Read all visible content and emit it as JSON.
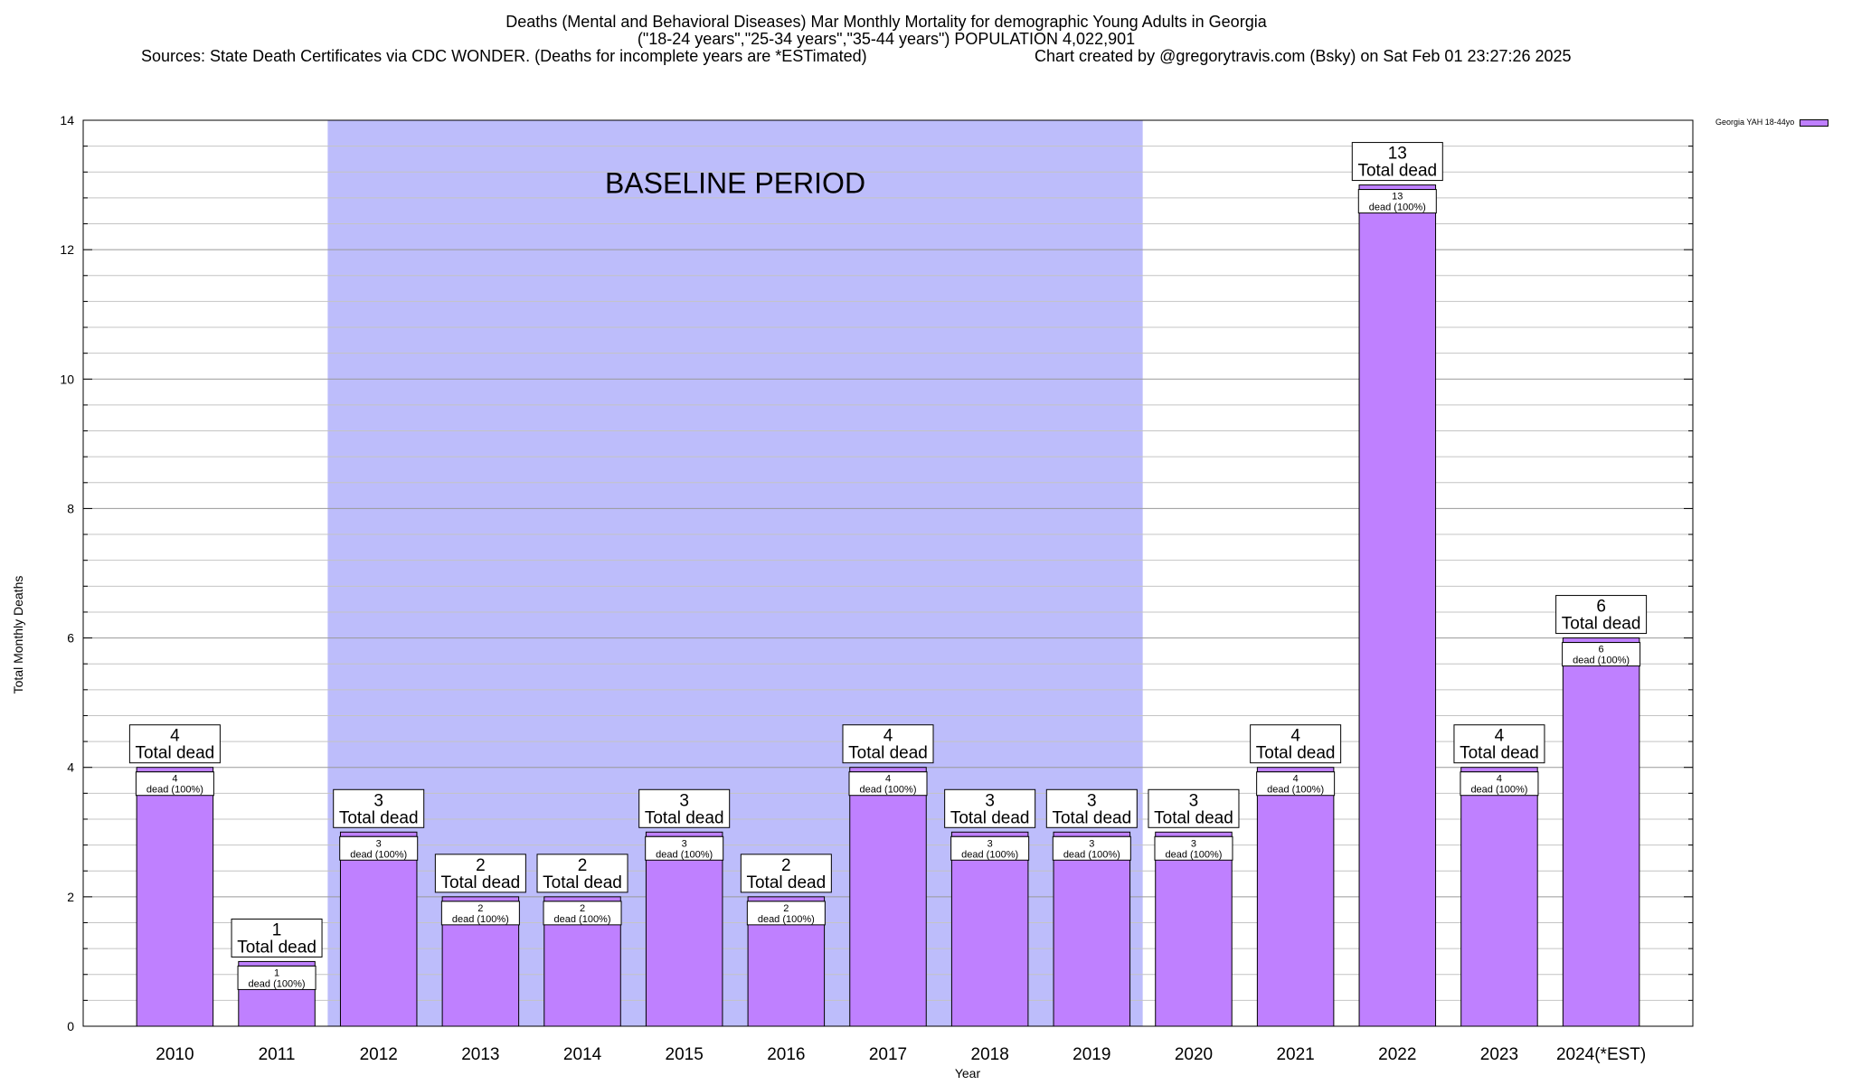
{
  "title_lines": [
    "Deaths (Mental and Behavioral Diseases) Mar Monthly Mortality for demographic Young Adults in Georgia",
    "(\"18-24 years\",\"25-34 years\",\"35-44 years\") POPULATION 4,022,901",
    "Sources: State Death Certificates via CDC WONDER. (Deaths for incomplete years are *ESTimated)",
    "Chart created by @gregorytravis.com (Bsky) on Sat Feb 01 23:27:26 2025"
  ],
  "legend_label": "Georgia YAH 18-44yo",
  "colors": {
    "bar": "#bf80ff",
    "baseline": "#bdbdfb"
  },
  "chart_data": {
    "type": "bar",
    "categories": [
      "2010",
      "2011",
      "2012",
      "2013",
      "2014",
      "2015",
      "2016",
      "2017",
      "2018",
      "2019",
      "2020",
      "2021",
      "2022",
      "2023",
      "2024(*EST)"
    ],
    "series": [
      {
        "name": "Georgia YAH 18-44yo",
        "values": [
          4,
          1,
          3,
          2,
          2,
          3,
          2,
          4,
          3,
          3,
          3,
          4,
          13,
          4,
          6
        ]
      }
    ],
    "xlabel": "Year",
    "ylabel": "Total Monthly Deaths",
    "ylim": [
      0,
      14
    ],
    "yticks": [
      0,
      2,
      4,
      6,
      8,
      10,
      12,
      14
    ],
    "grid": true,
    "baseline": {
      "label": "BASELINE PERIOD",
      "start": "2012",
      "end": "2019"
    },
    "top_label_suffix": "Total dead",
    "inner_label_suffix": "dead (100%)"
  }
}
